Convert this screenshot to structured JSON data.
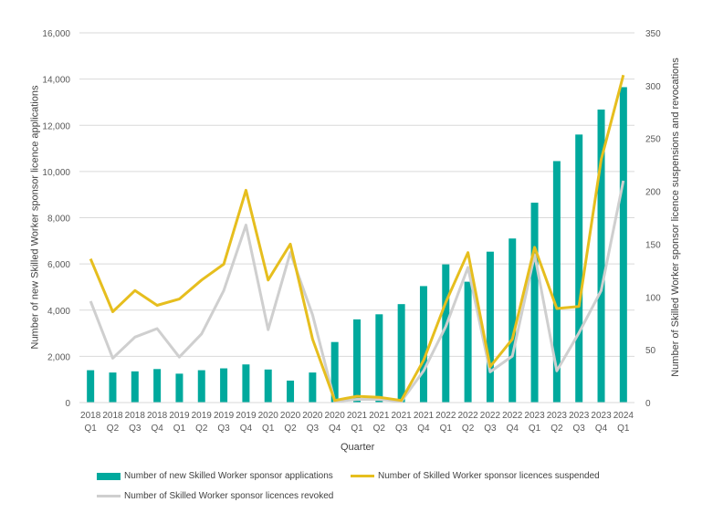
{
  "chart_data": {
    "type": "bar+line",
    "xlabel": "Quarter",
    "ylabel_left": "Number of new Skilled Worker sponsor licence applications",
    "ylabel_right": "Number of Skilled Worker sponsor licence suspensions and revocations",
    "ylim_left": [
      0,
      16000
    ],
    "ylim_right": [
      0,
      350
    ],
    "yticks_left": [
      "0",
      "2,000",
      "4,000",
      "6,000",
      "8,000",
      "10,000",
      "12,000",
      "14,000",
      "16,000"
    ],
    "yticks_right": [
      "0",
      "50",
      "100",
      "150",
      "200",
      "250",
      "300",
      "350"
    ],
    "gridlines": true,
    "legend_position": "bottom",
    "categories": [
      [
        "2018",
        "Q1"
      ],
      [
        "2018",
        "Q2"
      ],
      [
        "2018",
        "Q3"
      ],
      [
        "2018",
        "Q4"
      ],
      [
        "2019",
        "Q1"
      ],
      [
        "2019",
        "Q2"
      ],
      [
        "2019",
        "Q3"
      ],
      [
        "2019",
        "Q4"
      ],
      [
        "2020",
        "Q1"
      ],
      [
        "2020",
        "Q2"
      ],
      [
        "2020",
        "Q3"
      ],
      [
        "2020",
        "Q4"
      ],
      [
        "2021",
        "Q1"
      ],
      [
        "2021",
        "Q2"
      ],
      [
        "2021",
        "Q3"
      ],
      [
        "2021",
        "Q4"
      ],
      [
        "2022",
        "Q1"
      ],
      [
        "2022",
        "Q2"
      ],
      [
        "2022",
        "Q3"
      ],
      [
        "2022",
        "Q4"
      ],
      [
        "2023",
        "Q1"
      ],
      [
        "2023",
        "Q2"
      ],
      [
        "2023",
        "Q3"
      ],
      [
        "2023",
        "Q4"
      ],
      [
        "2024",
        "Q1"
      ]
    ],
    "series": [
      {
        "name": "Number of new Skilled Worker sponsor applications",
        "type": "bar",
        "axis": "left",
        "color": "#00A99D",
        "values": [
          1400,
          1300,
          1350,
          1450,
          1250,
          1400,
          1480,
          1650,
          1430,
          950,
          1300,
          2620,
          3600,
          3820,
          4260,
          5040,
          5980,
          5230,
          6530,
          7100,
          8650,
          10450,
          11600,
          12680,
          13650
        ]
      },
      {
        "name": "Number of Skilled Worker sponsor licences suspended",
        "type": "line",
        "axis": "right",
        "color": "#E6BE1E",
        "values": [
          136,
          86,
          106,
          92,
          98,
          116,
          131,
          201,
          116,
          150,
          60,
          2,
          6,
          5,
          2,
          40,
          95,
          142,
          34,
          60,
          147,
          89,
          91,
          230,
          310
        ]
      },
      {
        "name": "Number of Skilled Worker sponsor licences revoked",
        "type": "line",
        "axis": "right",
        "color": "#CFCFCF",
        "values": [
          96,
          42,
          62,
          70,
          43,
          65,
          106,
          168,
          69,
          142,
          83,
          1,
          3,
          3,
          1,
          30,
          72,
          128,
          29,
          44,
          140,
          30,
          66,
          106,
          210
        ]
      }
    ]
  }
}
